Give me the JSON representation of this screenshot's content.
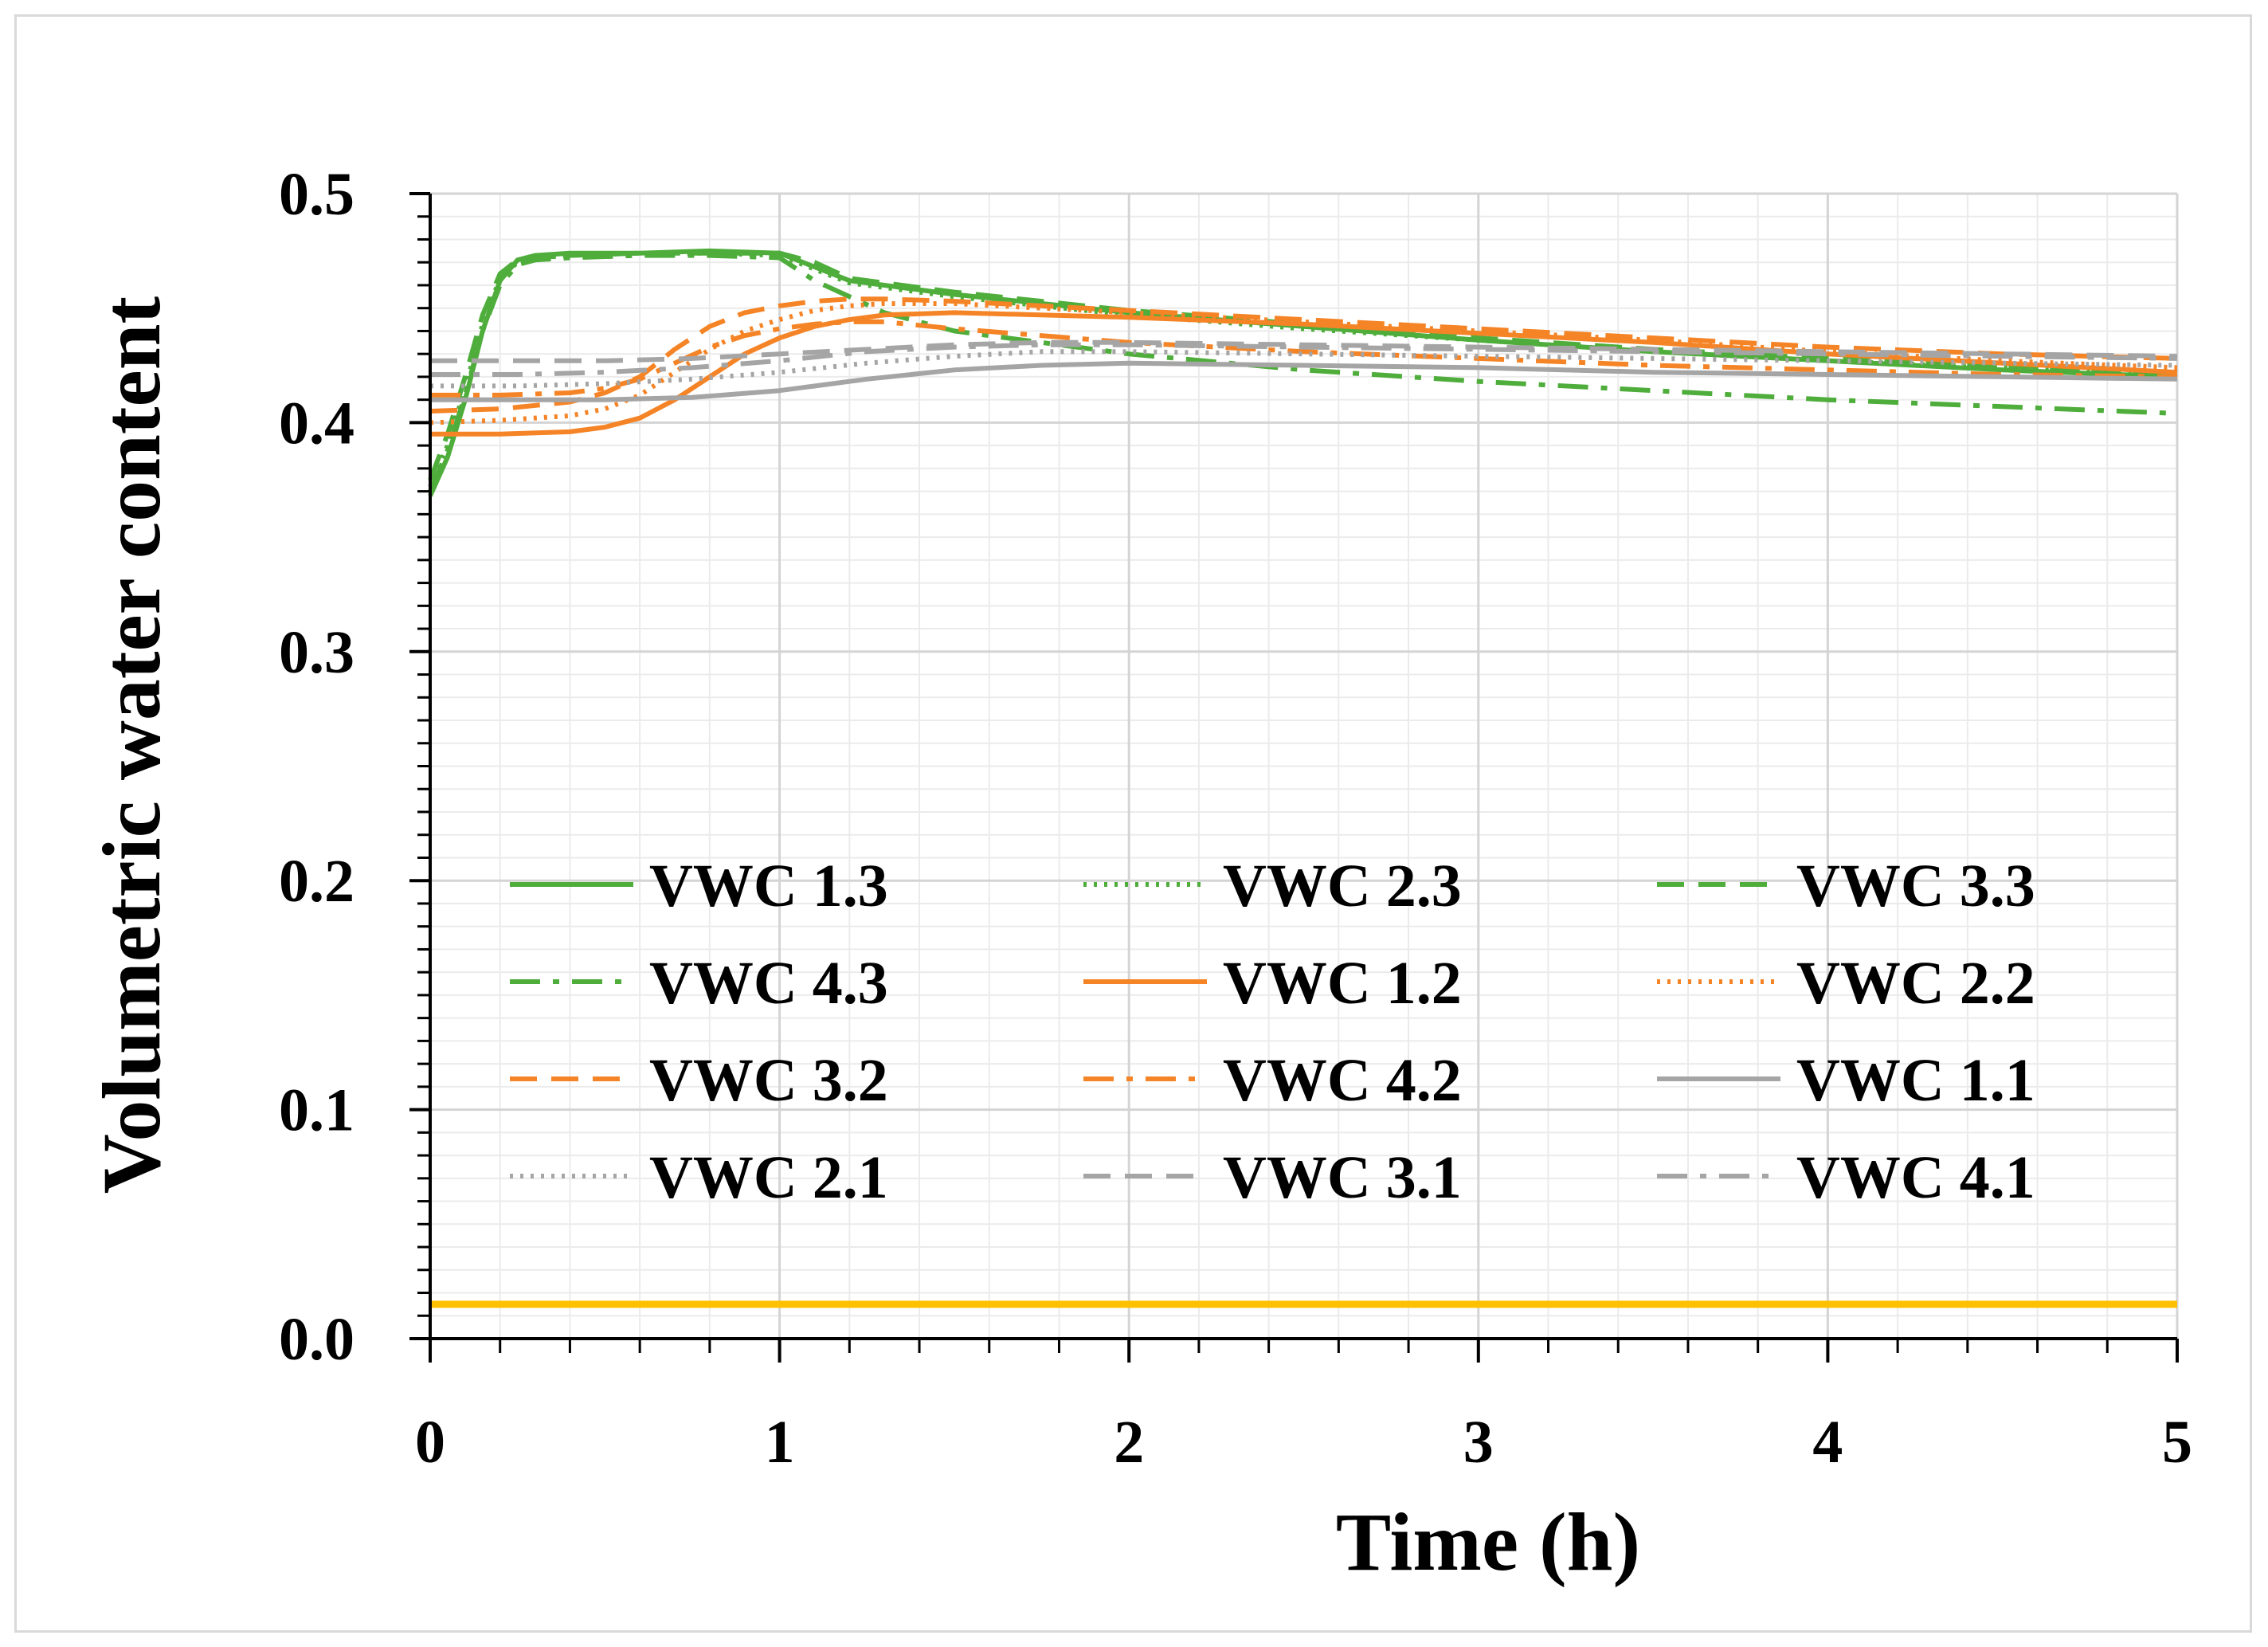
{
  "chart_data": {
    "type": "line",
    "xlabel": "Time (h)",
    "ylabel": "Volumetric water content",
    "xlim": [
      0,
      5
    ],
    "ylim": [
      0,
      0.5
    ],
    "xticks": [
      "0",
      "1",
      "2",
      "3",
      "4",
      "5"
    ],
    "yticks": [
      "0.0",
      "0.1",
      "0.2",
      "0.3",
      "0.4",
      "0.5"
    ],
    "grid": true,
    "legend_position": "center",
    "reference_line": {
      "y": 0.015,
      "color": "#FFC000"
    },
    "series": [
      {
        "name": "VWC 1.3",
        "color": "#4EAD3B",
        "dash": "solid",
        "x": [
          0,
          0.05,
          0.1,
          0.15,
          0.2,
          0.25,
          0.3,
          0.4,
          0.6,
          0.8,
          1.0,
          1.1,
          1.2,
          1.5,
          2.0,
          2.5,
          3.0,
          3.5,
          4.0,
          4.5,
          5.0
        ],
        "y": [
          0.368,
          0.385,
          0.41,
          0.44,
          0.462,
          0.471,
          0.473,
          0.474,
          0.474,
          0.475,
          0.474,
          0.468,
          0.462,
          0.456,
          0.448,
          0.442,
          0.436,
          0.431,
          0.427,
          0.423,
          0.42
        ]
      },
      {
        "name": "VWC 2.3",
        "color": "#4EAD3B",
        "dash": "dot",
        "x": [
          0,
          0.05,
          0.1,
          0.15,
          0.2,
          0.25,
          0.3,
          0.4,
          0.6,
          0.8,
          1.0,
          1.1,
          1.2,
          1.5,
          2.0,
          2.5,
          3.0,
          3.5,
          4.0,
          4.5,
          5.0
        ],
        "y": [
          0.372,
          0.39,
          0.415,
          0.443,
          0.463,
          0.47,
          0.472,
          0.473,
          0.474,
          0.474,
          0.473,
          0.467,
          0.461,
          0.455,
          0.447,
          0.441,
          0.436,
          0.431,
          0.427,
          0.424,
          0.421
        ]
      },
      {
        "name": "VWC 3.3",
        "color": "#4EAD3B",
        "dash": "dash",
        "x": [
          0,
          0.05,
          0.1,
          0.15,
          0.2,
          0.25,
          0.3,
          0.4,
          0.6,
          0.8,
          1.0,
          1.1,
          1.2,
          1.5,
          2.0,
          2.5,
          3.0,
          3.5,
          4.0,
          4.5,
          5.0
        ],
        "y": [
          0.375,
          0.395,
          0.42,
          0.447,
          0.465,
          0.471,
          0.472,
          0.473,
          0.474,
          0.474,
          0.474,
          0.47,
          0.463,
          0.457,
          0.449,
          0.443,
          0.437,
          0.432,
          0.428,
          0.425,
          0.422
        ]
      },
      {
        "name": "VWC 4.3",
        "color": "#4EAD3B",
        "dash": "dashdot",
        "x": [
          0,
          0.05,
          0.1,
          0.15,
          0.2,
          0.25,
          0.3,
          0.4,
          0.6,
          0.8,
          1.0,
          1.1,
          1.3,
          1.5,
          2.0,
          2.5,
          3.0,
          3.5,
          4.0,
          4.5,
          5.0
        ],
        "y": [
          0.37,
          0.388,
          0.412,
          0.44,
          0.46,
          0.469,
          0.471,
          0.472,
          0.473,
          0.473,
          0.472,
          0.462,
          0.448,
          0.44,
          0.43,
          0.423,
          0.418,
          0.414,
          0.41,
          0.407,
          0.404
        ]
      },
      {
        "name": "VWC 1.2",
        "color": "#F58426",
        "dash": "solid",
        "x": [
          0,
          0.2,
          0.4,
          0.5,
          0.6,
          0.7,
          0.8,
          0.9,
          1.0,
          1.1,
          1.2,
          1.3,
          1.5,
          2.0,
          2.5,
          3.0,
          3.5,
          4.0,
          4.5,
          5.0
        ],
        "y": [
          0.395,
          0.395,
          0.396,
          0.398,
          0.402,
          0.41,
          0.42,
          0.43,
          0.437,
          0.442,
          0.445,
          0.447,
          0.448,
          0.446,
          0.443,
          0.439,
          0.435,
          0.43,
          0.426,
          0.422
        ]
      },
      {
        "name": "VWC 2.2",
        "color": "#F58426",
        "dash": "dot",
        "x": [
          0,
          0.2,
          0.4,
          0.5,
          0.6,
          0.7,
          0.8,
          0.9,
          1.0,
          1.1,
          1.2,
          1.3,
          1.5,
          2.0,
          2.5,
          3.0,
          3.5,
          4.0,
          4.5,
          5.0
        ],
        "y": [
          0.4,
          0.401,
          0.403,
          0.406,
          0.412,
          0.422,
          0.432,
          0.44,
          0.445,
          0.449,
          0.451,
          0.452,
          0.452,
          0.448,
          0.444,
          0.44,
          0.436,
          0.431,
          0.427,
          0.424
        ]
      },
      {
        "name": "VWC 3.2",
        "color": "#F58426",
        "dash": "dash",
        "x": [
          0,
          0.2,
          0.4,
          0.5,
          0.6,
          0.7,
          0.8,
          0.9,
          1.0,
          1.1,
          1.2,
          1.3,
          1.5,
          2.0,
          2.5,
          3.0,
          3.5,
          4.0,
          4.5,
          5.0
        ],
        "y": [
          0.405,
          0.406,
          0.409,
          0.413,
          0.42,
          0.432,
          0.442,
          0.448,
          0.451,
          0.453,
          0.454,
          0.454,
          0.453,
          0.449,
          0.445,
          0.441,
          0.437,
          0.433,
          0.43,
          0.428
        ]
      },
      {
        "name": "VWC 4.2",
        "color": "#F58426",
        "dash": "dashdot",
        "x": [
          0,
          0.2,
          0.4,
          0.5,
          0.6,
          0.7,
          0.8,
          0.9,
          1.0,
          1.1,
          1.2,
          1.3,
          1.5,
          2.0,
          2.5,
          3.0,
          3.5,
          4.0,
          4.5,
          5.0
        ],
        "y": [
          0.412,
          0.412,
          0.413,
          0.415,
          0.419,
          0.426,
          0.433,
          0.438,
          0.441,
          0.443,
          0.444,
          0.444,
          0.441,
          0.435,
          0.431,
          0.428,
          0.425,
          0.423,
          0.421,
          0.42
        ]
      },
      {
        "name": "VWC 1.1",
        "color": "#A5A5A5",
        "dash": "solid",
        "x": [
          0,
          0.25,
          0.5,
          0.75,
          1.0,
          1.25,
          1.5,
          1.75,
          2.0,
          2.5,
          3.0,
          3.5,
          4.0,
          4.5,
          5.0
        ],
        "y": [
          0.41,
          0.41,
          0.41,
          0.411,
          0.414,
          0.419,
          0.423,
          0.425,
          0.426,
          0.425,
          0.424,
          0.422,
          0.421,
          0.42,
          0.419
        ]
      },
      {
        "name": "VWC 2.1",
        "color": "#A5A5A5",
        "dash": "dot",
        "x": [
          0,
          0.25,
          0.5,
          0.75,
          1.0,
          1.25,
          1.5,
          1.75,
          2.0,
          2.5,
          3.0,
          3.5,
          4.0,
          4.5,
          5.0
        ],
        "y": [
          0.416,
          0.416,
          0.417,
          0.419,
          0.422,
          0.426,
          0.429,
          0.431,
          0.431,
          0.43,
          0.429,
          0.428,
          0.427,
          0.426,
          0.425
        ]
      },
      {
        "name": "VWC 3.1",
        "color": "#A5A5A5",
        "dash": "dash",
        "x": [
          0,
          0.25,
          0.5,
          0.75,
          1.0,
          1.25,
          1.5,
          1.75,
          2.0,
          2.5,
          3.0,
          3.5,
          4.0,
          4.5,
          5.0
        ],
        "y": [
          0.427,
          0.427,
          0.427,
          0.428,
          0.43,
          0.432,
          0.434,
          0.435,
          0.435,
          0.434,
          0.433,
          0.432,
          0.431,
          0.43,
          0.429
        ]
      },
      {
        "name": "VWC 4.1",
        "color": "#A5A5A5",
        "dash": "dashdot",
        "x": [
          0,
          0.25,
          0.5,
          0.75,
          1.0,
          1.25,
          1.5,
          1.75,
          2.0,
          2.5,
          3.0,
          3.5,
          4.0,
          4.5,
          5.0
        ],
        "y": [
          0.421,
          0.421,
          0.422,
          0.424,
          0.427,
          0.431,
          0.433,
          0.434,
          0.434,
          0.433,
          0.432,
          0.431,
          0.43,
          0.429,
          0.428
        ]
      }
    ]
  }
}
